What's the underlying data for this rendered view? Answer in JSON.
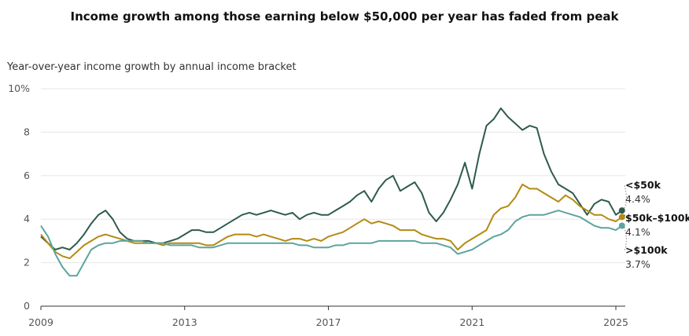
{
  "chart_data": {
    "type": "line",
    "title": "Income growth among those earning below $50,000 per year has faded from peak",
    "subtitle": "Year-over-year income growth by annual income bracket",
    "xlim": [
      2009,
      2025.2
    ],
    "ylim": [
      0,
      10
    ],
    "y_ticks": [
      0,
      2,
      4,
      6,
      8,
      10
    ],
    "y_tick_labels": [
      "0",
      "2",
      "4",
      "6",
      "8",
      "10%"
    ],
    "x_ticks": [
      2009,
      2013,
      2017,
      2021,
      2025
    ],
    "x_tick_labels": [
      "2009",
      "2013",
      "2017",
      "2021",
      "2025"
    ],
    "grid": true,
    "series": [
      {
        "name": "<$50k",
        "end_label": "4.4%",
        "color": "#2e5a4d",
        "x": [
          2009.0,
          2009.2,
          2009.4,
          2009.6,
          2009.8,
          2010.0,
          2010.2,
          2010.4,
          2010.6,
          2010.8,
          2011.0,
          2011.2,
          2011.4,
          2011.6,
          2011.8,
          2012.0,
          2012.2,
          2012.4,
          2012.6,
          2012.8,
          2013.0,
          2013.2,
          2013.4,
          2013.6,
          2013.8,
          2014.0,
          2014.2,
          2014.4,
          2014.6,
          2014.8,
          2015.0,
          2015.2,
          2015.4,
          2015.6,
          2015.8,
          2016.0,
          2016.2,
          2016.4,
          2016.6,
          2016.8,
          2017.0,
          2017.2,
          2017.4,
          2017.6,
          2017.8,
          2018.0,
          2018.2,
          2018.4,
          2018.6,
          2018.8,
          2019.0,
          2019.2,
          2019.4,
          2019.6,
          2019.8,
          2020.0,
          2020.2,
          2020.4,
          2020.6,
          2020.8,
          2021.0,
          2021.2,
          2021.4,
          2021.6,
          2021.8,
          2022.0,
          2022.2,
          2022.4,
          2022.6,
          2022.8,
          2023.0,
          2023.2,
          2023.4,
          2023.6,
          2023.8,
          2024.0,
          2024.2,
          2024.4,
          2024.6,
          2024.8,
          2025.0,
          2025.17
        ],
        "y": [
          3.2,
          2.9,
          2.6,
          2.7,
          2.6,
          2.9,
          3.3,
          3.8,
          4.2,
          4.4,
          4.0,
          3.4,
          3.1,
          3.0,
          3.0,
          3.0,
          2.9,
          2.9,
          3.0,
          3.1,
          3.3,
          3.5,
          3.5,
          3.4,
          3.4,
          3.6,
          3.8,
          4.0,
          4.2,
          4.3,
          4.2,
          4.3,
          4.4,
          4.3,
          4.2,
          4.3,
          4.0,
          4.2,
          4.3,
          4.2,
          4.2,
          4.4,
          4.6,
          4.8,
          5.1,
          5.3,
          4.8,
          5.4,
          5.8,
          6.0,
          5.3,
          5.5,
          5.7,
          5.2,
          4.3,
          3.9,
          4.3,
          4.9,
          5.6,
          6.6,
          5.4,
          7.0,
          8.3,
          8.6,
          9.1,
          8.7,
          8.4,
          8.1,
          8.3,
          8.2,
          7.0,
          6.2,
          5.6,
          5.4,
          5.2,
          4.7,
          4.2,
          4.7,
          4.9,
          4.8,
          4.2,
          4.4
        ]
      },
      {
        "name": "$50k–$100k",
        "end_label": "4.1%",
        "color": "#b38a12",
        "x": [
          2009.0,
          2009.2,
          2009.4,
          2009.6,
          2009.8,
          2010.0,
          2010.2,
          2010.4,
          2010.6,
          2010.8,
          2011.0,
          2011.2,
          2011.4,
          2011.6,
          2011.8,
          2012.0,
          2012.2,
          2012.4,
          2012.6,
          2012.8,
          2013.0,
          2013.2,
          2013.4,
          2013.6,
          2013.8,
          2014.0,
          2014.2,
          2014.4,
          2014.6,
          2014.8,
          2015.0,
          2015.2,
          2015.4,
          2015.6,
          2015.8,
          2016.0,
          2016.2,
          2016.4,
          2016.6,
          2016.8,
          2017.0,
          2017.2,
          2017.4,
          2017.6,
          2017.8,
          2018.0,
          2018.2,
          2018.4,
          2018.6,
          2018.8,
          2019.0,
          2019.2,
          2019.4,
          2019.6,
          2019.8,
          2020.0,
          2020.2,
          2020.4,
          2020.6,
          2020.8,
          2021.0,
          2021.2,
          2021.4,
          2021.6,
          2021.8,
          2022.0,
          2022.2,
          2022.4,
          2022.6,
          2022.8,
          2023.0,
          2023.2,
          2023.4,
          2023.6,
          2023.8,
          2024.0,
          2024.2,
          2024.4,
          2024.6,
          2024.8,
          2025.0,
          2025.17
        ],
        "y": [
          3.3,
          2.9,
          2.5,
          2.3,
          2.2,
          2.5,
          2.8,
          3.0,
          3.2,
          3.3,
          3.2,
          3.1,
          3.0,
          2.9,
          2.9,
          2.9,
          2.9,
          2.8,
          2.9,
          2.9,
          2.9,
          2.9,
          2.9,
          2.8,
          2.8,
          3.0,
          3.2,
          3.3,
          3.3,
          3.3,
          3.2,
          3.3,
          3.2,
          3.1,
          3.0,
          3.1,
          3.1,
          3.0,
          3.1,
          3.0,
          3.2,
          3.3,
          3.4,
          3.6,
          3.8,
          4.0,
          3.8,
          3.9,
          3.8,
          3.7,
          3.5,
          3.5,
          3.5,
          3.3,
          3.2,
          3.1,
          3.1,
          3.0,
          2.6,
          2.9,
          3.1,
          3.3,
          3.5,
          4.2,
          4.5,
          4.6,
          5.0,
          5.6,
          5.4,
          5.4,
          5.2,
          5.0,
          4.8,
          5.1,
          4.9,
          4.6,
          4.4,
          4.2,
          4.2,
          4.0,
          3.9,
          4.1
        ]
      },
      {
        "name": ">$100k",
        "end_label": "3.7%",
        "color": "#5aa59d",
        "x": [
          2009.0,
          2009.2,
          2009.4,
          2009.6,
          2009.8,
          2010.0,
          2010.2,
          2010.4,
          2010.6,
          2010.8,
          2011.0,
          2011.2,
          2011.4,
          2011.6,
          2011.8,
          2012.0,
          2012.2,
          2012.4,
          2012.6,
          2012.8,
          2013.0,
          2013.2,
          2013.4,
          2013.6,
          2013.8,
          2014.0,
          2014.2,
          2014.4,
          2014.6,
          2014.8,
          2015.0,
          2015.2,
          2015.4,
          2015.6,
          2015.8,
          2016.0,
          2016.2,
          2016.4,
          2016.6,
          2016.8,
          2017.0,
          2017.2,
          2017.4,
          2017.6,
          2017.8,
          2018.0,
          2018.2,
          2018.4,
          2018.6,
          2018.8,
          2019.0,
          2019.2,
          2019.4,
          2019.6,
          2019.8,
          2020.0,
          2020.2,
          2020.4,
          2020.6,
          2020.8,
          2021.0,
          2021.2,
          2021.4,
          2021.6,
          2021.8,
          2022.0,
          2022.2,
          2022.4,
          2022.6,
          2022.8,
          2023.0,
          2023.2,
          2023.4,
          2023.6,
          2023.8,
          2024.0,
          2024.2,
          2024.4,
          2024.6,
          2024.8,
          2025.0,
          2025.17
        ],
        "y": [
          3.7,
          3.2,
          2.4,
          1.8,
          1.4,
          1.4,
          2.0,
          2.6,
          2.8,
          2.9,
          2.9,
          3.0,
          3.0,
          3.0,
          3.0,
          2.9,
          2.9,
          2.9,
          2.8,
          2.8,
          2.8,
          2.8,
          2.7,
          2.7,
          2.7,
          2.8,
          2.9,
          2.9,
          2.9,
          2.9,
          2.9,
          2.9,
          2.9,
          2.9,
          2.9,
          2.9,
          2.8,
          2.8,
          2.7,
          2.7,
          2.7,
          2.8,
          2.8,
          2.9,
          2.9,
          2.9,
          2.9,
          3.0,
          3.0,
          3.0,
          3.0,
          3.0,
          3.0,
          2.9,
          2.9,
          2.9,
          2.8,
          2.7,
          2.4,
          2.5,
          2.6,
          2.8,
          3.0,
          3.2,
          3.3,
          3.5,
          3.9,
          4.1,
          4.2,
          4.2,
          4.2,
          4.3,
          4.4,
          4.3,
          4.2,
          4.1,
          3.9,
          3.7,
          3.6,
          3.6,
          3.5,
          3.7
        ]
      }
    ]
  }
}
